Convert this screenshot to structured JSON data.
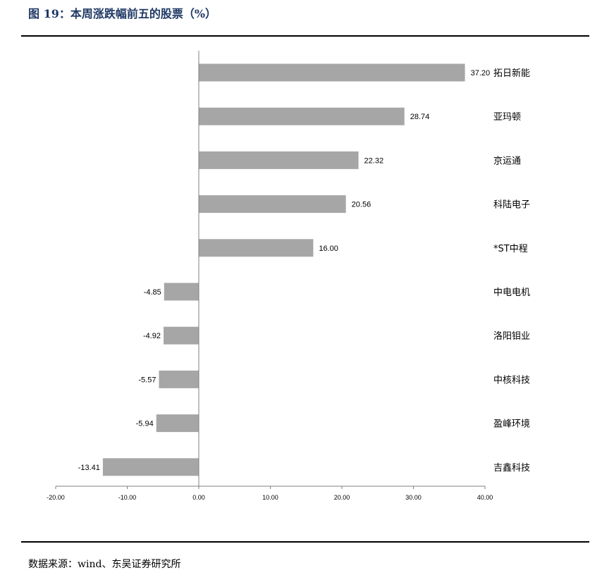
{
  "header": {
    "title": "图 19：本周涨跌幅前五的股票（%）"
  },
  "footer": {
    "source": "数据来源：wind、东吴证券研究所"
  },
  "colors": {
    "bar": "#a6a6a6",
    "axis": "#7f7f7f",
    "title": "#1f3864"
  },
  "chart_data": {
    "type": "bar",
    "orientation": "horizontal",
    "categories": [
      "拓日新能",
      "亚玛顿",
      "京运通",
      "科陆电子",
      "*ST中程",
      "中电电机",
      "洛阳钼业",
      "中核科技",
      "盈峰环境",
      "吉鑫科技"
    ],
    "values": [
      37.2,
      28.74,
      22.32,
      20.56,
      16.0,
      -4.85,
      -4.92,
      -5.57,
      -5.94,
      -13.41
    ],
    "value_labels": [
      "37.20",
      "28.74",
      "22.32",
      "20.56",
      "16.00",
      "-4.85",
      "-4.92",
      "-5.57",
      "-5.94",
      "-13.41"
    ],
    "xlim": [
      -20,
      40
    ],
    "xticks": [
      -20,
      -10,
      0,
      10,
      20,
      30,
      40
    ],
    "xtick_labels": [
      "-20.00",
      "-10.00",
      "0.00",
      "10.00",
      "20.00",
      "30.00",
      "40.00"
    ],
    "grid": false,
    "legend": "none"
  }
}
